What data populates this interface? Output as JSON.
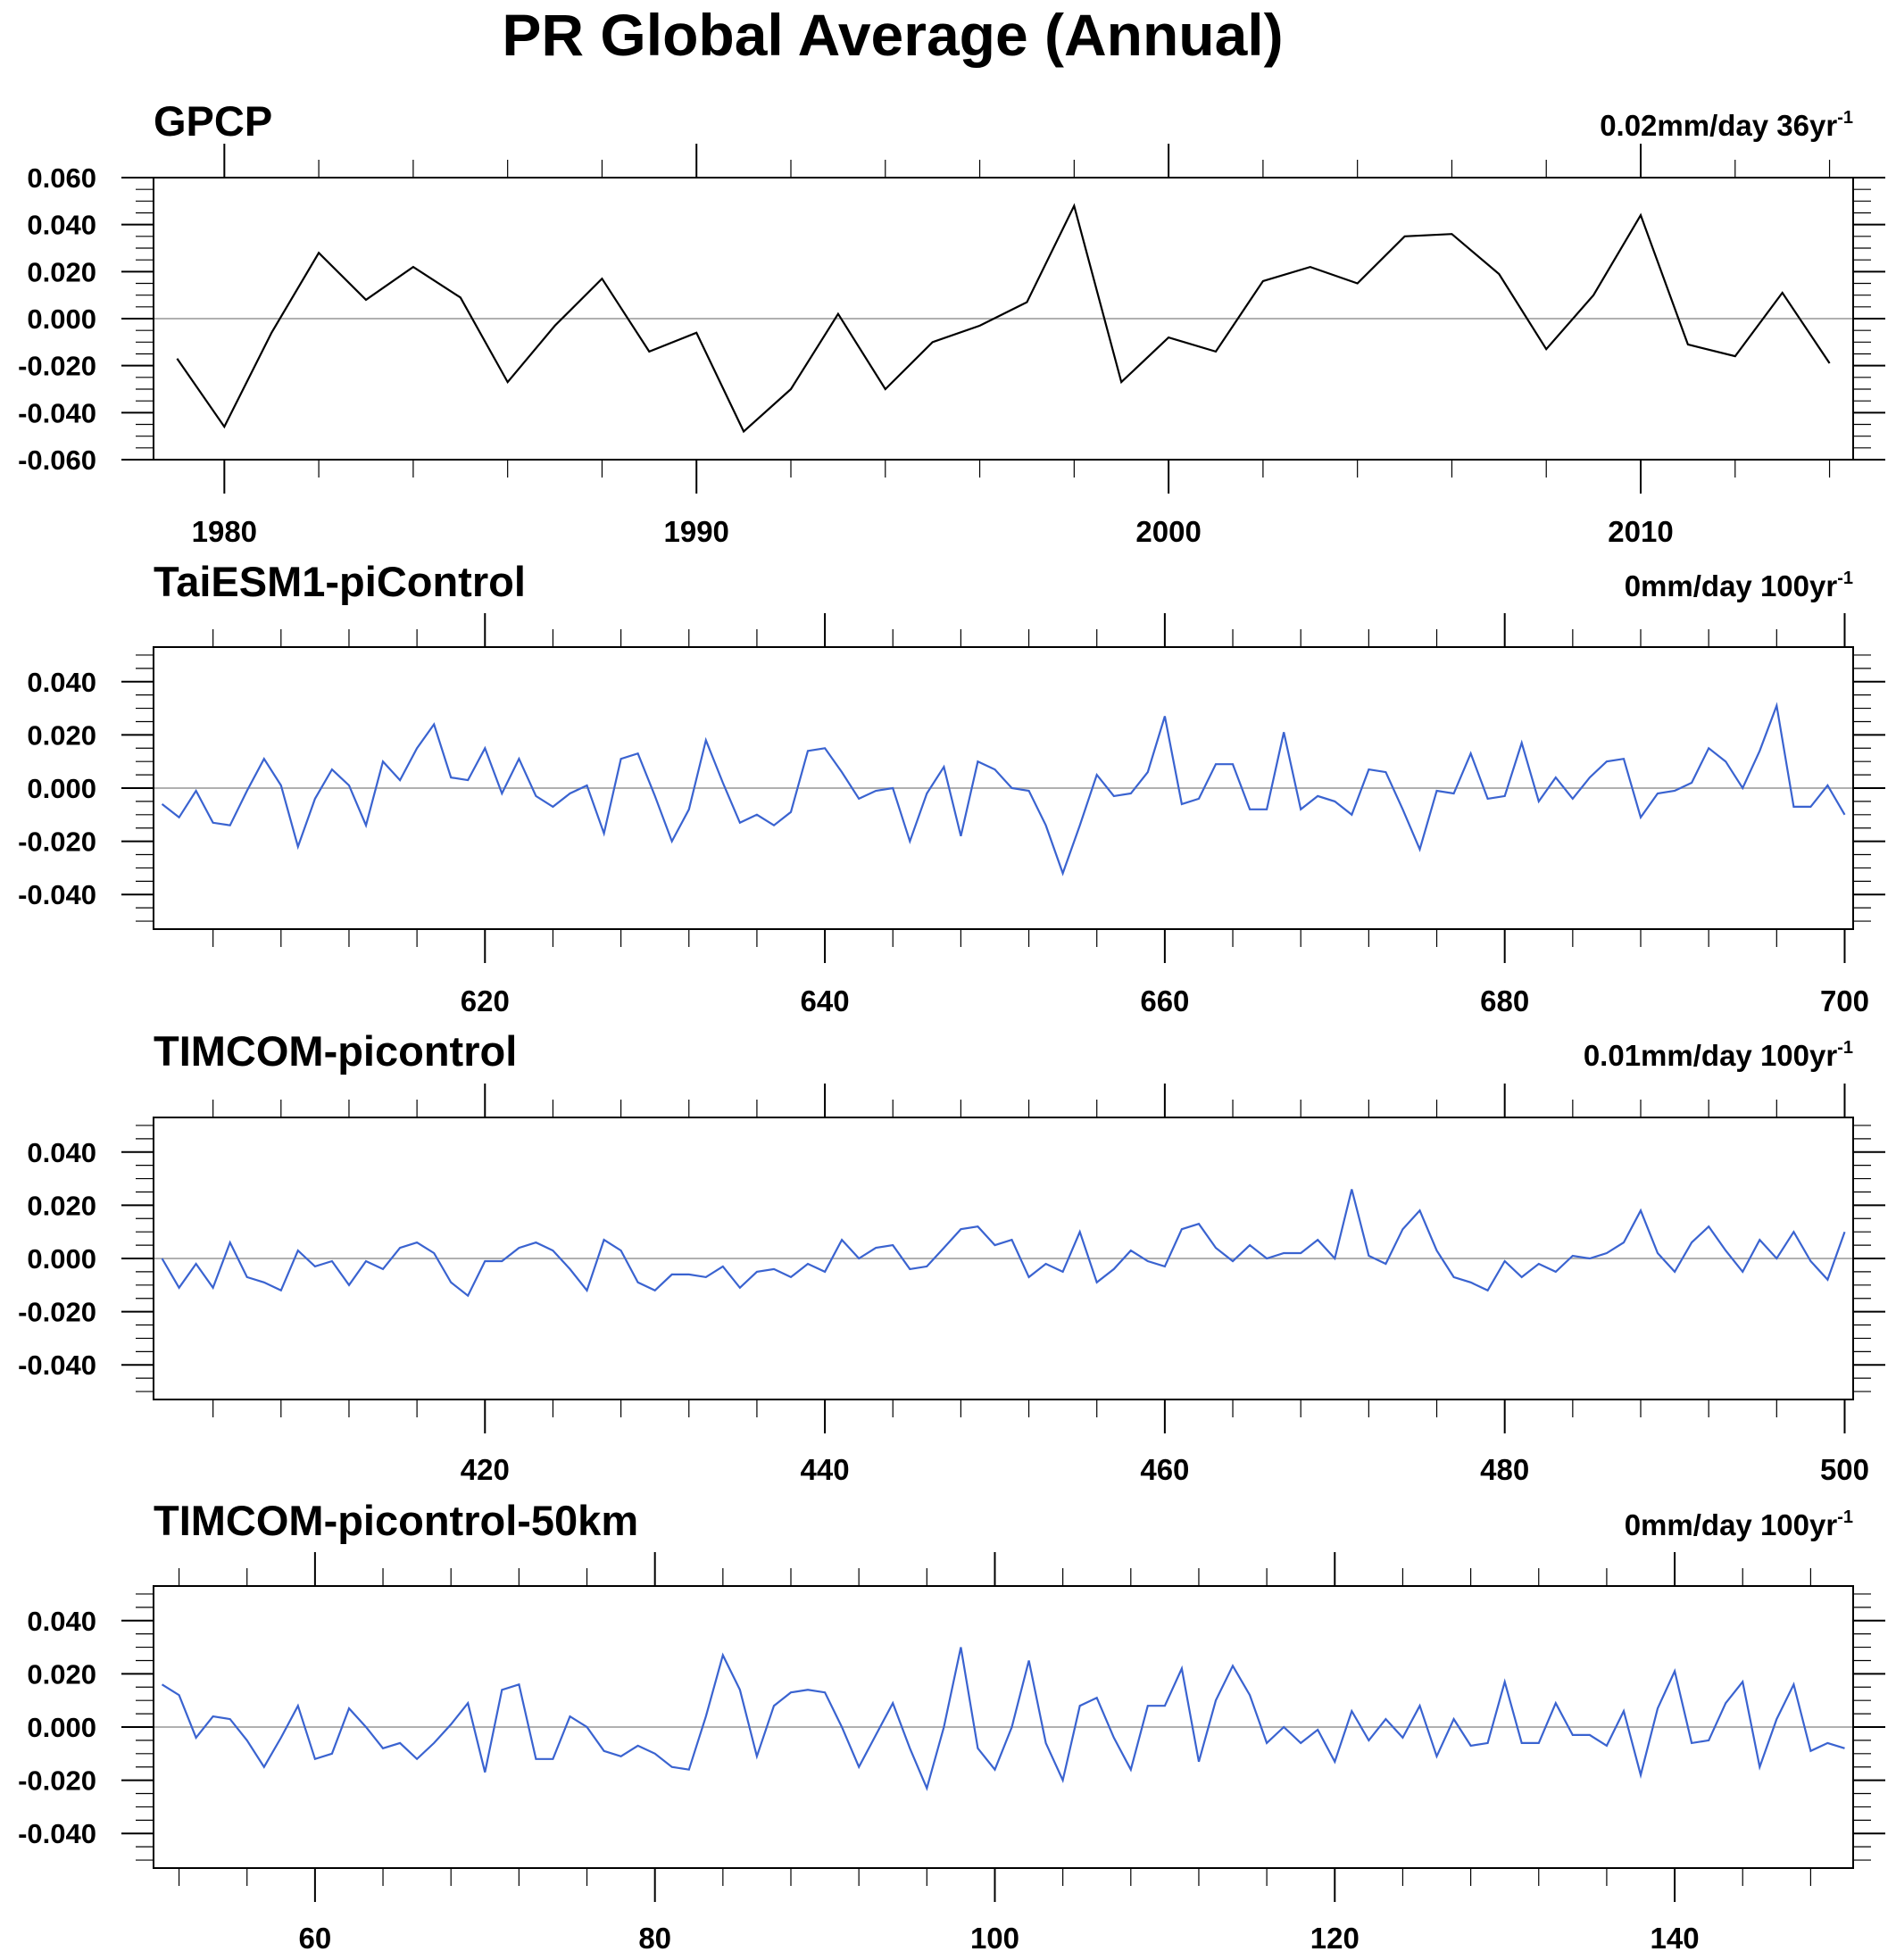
{
  "title": "PR Global Average (Annual)",
  "chart_data": [
    {
      "type": "line",
      "title": "GPCP",
      "trend_label": "0.02mm/day 36yr",
      "trend_sup": "-1",
      "color": "#000000",
      "x": [
        1979,
        1980,
        1981,
        1982,
        1983,
        1984,
        1985,
        1986,
        1987,
        1988,
        1989,
        1990,
        1991,
        1992,
        1993,
        1994,
        1995,
        1996,
        1997,
        1998,
        1999,
        2000,
        2001,
        2002,
        2003,
        2004,
        2005,
        2006,
        2007,
        2008,
        2009,
        2010,
        2011,
        2012,
        2013,
        2014
      ],
      "y": [
        -0.017,
        -0.046,
        -0.006,
        0.028,
        0.008,
        0.022,
        0.009,
        -0.027,
        -0.003,
        0.017,
        -0.014,
        -0.006,
        -0.048,
        -0.03,
        0.002,
        -0.03,
        -0.01,
        -0.003,
        0.007,
        0.048,
        -0.027,
        -0.008,
        -0.014,
        0.016,
        0.022,
        0.015,
        0.035,
        0.036,
        0.019,
        -0.013,
        0.01,
        0.044,
        -0.011,
        -0.016,
        0.011,
        -0.019
      ],
      "xlim": [
        1978.5,
        2014.5
      ],
      "ylim": [
        -0.06,
        0.06
      ],
      "major_y": [
        -0.06,
        -0.04,
        -0.02,
        0.0,
        0.02,
        0.04,
        0.06
      ],
      "y_tick_labels": [
        "-0.060",
        "-0.040",
        "-0.020",
        "0.000",
        "0.020",
        "0.040",
        "0.060"
      ],
      "x_ticks": [
        1980,
        1990,
        2000,
        2010
      ],
      "x_tick_labels": [
        "1980",
        "1990",
        "2000",
        "2010"
      ],
      "x_minor_step": 2
    },
    {
      "type": "line",
      "title": "TaiESM1-piControl",
      "trend_label": "0mm/day 100yr",
      "trend_sup": "-1",
      "color": "#3a63d0",
      "x_start": 601,
      "y": [
        -0.006,
        -0.011,
        -0.001,
        -0.013,
        -0.014,
        -0.001,
        0.011,
        0.001,
        -0.022,
        -0.004,
        0.007,
        0.001,
        -0.014,
        0.01,
        0.003,
        0.015,
        0.024,
        0.004,
        0.003,
        0.015,
        -0.002,
        0.011,
        -0.003,
        -0.007,
        -0.002,
        0.001,
        -0.017,
        0.011,
        0.013,
        -0.003,
        -0.02,
        -0.008,
        0.018,
        0.002,
        -0.013,
        -0.01,
        -0.014,
        -0.009,
        0.014,
        0.015,
        0.006,
        -0.004,
        -0.001,
        0.0,
        -0.02,
        -0.002,
        0.008,
        -0.018,
        0.01,
        0.007,
        0.0,
        -0.001,
        -0.014,
        -0.032,
        -0.014,
        0.005,
        -0.003,
        -0.002,
        0.006,
        0.027,
        -0.006,
        -0.004,
        0.009,
        0.009,
        -0.008,
        -0.008,
        0.021,
        -0.008,
        -0.003,
        -0.005,
        -0.01,
        0.007,
        0.006,
        -0.008,
        -0.023,
        -0.001,
        -0.002,
        0.013,
        -0.004,
        -0.003,
        0.017,
        -0.005,
        0.004,
        -0.004,
        0.004,
        0.01,
        0.011,
        -0.011,
        -0.002,
        -0.001,
        0.002,
        0.015,
        0.01,
        0.0,
        0.014,
        0.031,
        -0.007,
        -0.007,
        0.001,
        -0.01
      ],
      "xlim": [
        600.5,
        700.5
      ],
      "ylim": [
        -0.053,
        0.053
      ],
      "major_y": [
        -0.04,
        -0.02,
        0.0,
        0.02,
        0.04
      ],
      "y_tick_labels": [
        "-0.040",
        "-0.020",
        "0.000",
        "0.020",
        "0.040"
      ],
      "x_ticks": [
        620,
        640,
        660,
        680,
        700
      ],
      "x_tick_labels": [
        "620",
        "640",
        "660",
        "680",
        "700"
      ],
      "x_minor_step": 4
    },
    {
      "type": "line",
      "title": "TIMCOM-picontrol",
      "trend_label": "0.01mm/day 100yr",
      "trend_sup": "-1",
      "color": "#3a63d0",
      "x_start": 401,
      "y": [
        0.0,
        -0.011,
        -0.002,
        -0.011,
        0.006,
        -0.007,
        -0.009,
        -0.012,
        0.003,
        -0.003,
        -0.001,
        -0.01,
        -0.001,
        -0.004,
        0.004,
        0.006,
        0.002,
        -0.009,
        -0.014,
        -0.001,
        -0.001,
        0.004,
        0.006,
        0.003,
        -0.004,
        -0.012,
        0.007,
        0.003,
        -0.009,
        -0.012,
        -0.006,
        -0.006,
        -0.007,
        -0.003,
        -0.011,
        -0.005,
        -0.004,
        -0.007,
        -0.002,
        -0.005,
        0.007,
        0.0,
        0.004,
        0.005,
        -0.004,
        -0.003,
        0.004,
        0.011,
        0.012,
        0.005,
        0.007,
        -0.007,
        -0.002,
        -0.005,
        0.01,
        -0.009,
        -0.004,
        0.003,
        -0.001,
        -0.003,
        0.011,
        0.013,
        0.004,
        -0.001,
        0.005,
        0.0,
        0.002,
        0.002,
        0.007,
        0.0,
        0.026,
        0.001,
        -0.002,
        0.011,
        0.018,
        0.003,
        -0.007,
        -0.009,
        -0.012,
        -0.001,
        -0.007,
        -0.002,
        -0.005,
        0.001,
        0.0,
        0.002,
        0.006,
        0.018,
        0.002,
        -0.005,
        0.006,
        0.012,
        0.003,
        -0.005,
        0.007,
        0.0,
        0.01,
        -0.001,
        -0.008,
        0.01
      ],
      "xlim": [
        400.5,
        500.5
      ],
      "ylim": [
        -0.053,
        0.053
      ],
      "major_y": [
        -0.04,
        -0.02,
        0.0,
        0.02,
        0.04
      ],
      "y_tick_labels": [
        "-0.040",
        "-0.020",
        "0.000",
        "0.020",
        "0.040"
      ],
      "x_ticks": [
        420,
        440,
        460,
        480,
        500
      ],
      "x_tick_labels": [
        "420",
        "440",
        "460",
        "480",
        "500"
      ],
      "x_minor_step": 4
    },
    {
      "type": "line",
      "title": "TIMCOM-picontrol-50km",
      "trend_label": "0mm/day 100yr",
      "trend_sup": "-1",
      "color": "#3a63d0",
      "x_start": 51,
      "y": [
        0.016,
        0.012,
        -0.004,
        0.004,
        0.003,
        -0.005,
        -0.015,
        -0.004,
        0.008,
        -0.012,
        -0.01,
        0.007,
        0.0,
        -0.008,
        -0.006,
        -0.012,
        -0.006,
        0.001,
        0.009,
        -0.017,
        0.014,
        0.016,
        -0.012,
        -0.012,
        0.004,
        0.0,
        -0.009,
        -0.011,
        -0.007,
        -0.01,
        -0.015,
        -0.016,
        0.004,
        0.027,
        0.014,
        -0.011,
        0.008,
        0.013,
        0.014,
        0.013,
        0.0,
        -0.015,
        -0.003,
        0.009,
        -0.008,
        -0.023,
        0.0,
        0.03,
        -0.008,
        -0.016,
        0.0,
        0.025,
        -0.006,
        -0.02,
        0.008,
        0.011,
        -0.004,
        -0.016,
        0.008,
        0.008,
        0.022,
        -0.013,
        0.01,
        0.023,
        0.012,
        -0.006,
        0.0,
        -0.006,
        -0.001,
        -0.013,
        0.006,
        -0.005,
        0.003,
        -0.004,
        0.008,
        -0.011,
        0.003,
        -0.007,
        -0.006,
        0.017,
        -0.006,
        -0.006,
        0.009,
        -0.003,
        -0.003,
        -0.007,
        0.006,
        -0.018,
        0.007,
        0.021,
        -0.006,
        -0.005,
        0.009,
        0.017,
        -0.015,
        0.003,
        0.016,
        -0.009,
        -0.006,
        -0.008
      ],
      "xlim": [
        50.5,
        150.5
      ],
      "ylim": [
        -0.053,
        0.053
      ],
      "major_y": [
        -0.04,
        -0.02,
        0.0,
        0.02,
        0.04
      ],
      "y_tick_labels": [
        "-0.040",
        "-0.020",
        "0.000",
        "0.020",
        "0.040"
      ],
      "x_ticks": [
        60,
        80,
        100,
        120,
        140
      ],
      "x_tick_labels": [
        "60",
        "80",
        "100",
        "120",
        "140"
      ],
      "x_minor_step": 4
    }
  ]
}
